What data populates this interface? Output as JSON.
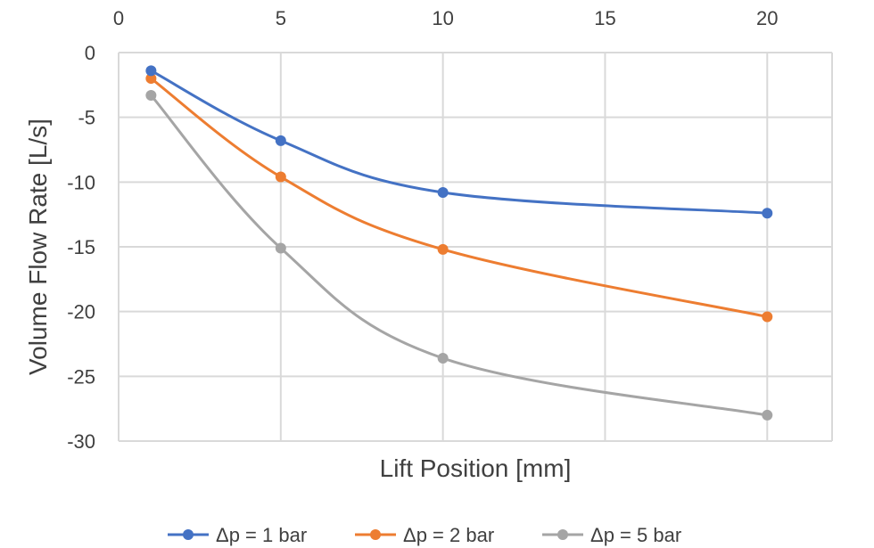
{
  "chart_data": {
    "type": "line",
    "title": "",
    "xlabel": "Lift Position [mm]",
    "ylabel": "Volume Flow Rate [L/s]",
    "xlim": [
      0,
      22
    ],
    "ylim": [
      -30,
      0
    ],
    "xticks": [
      0,
      5,
      10,
      15,
      20
    ],
    "yticks": [
      0,
      -5,
      -10,
      -15,
      -20,
      -25,
      -30
    ],
    "x_axis_position": "top",
    "grid": true,
    "smooth": true,
    "legend_position": "bottom",
    "x": [
      1,
      5,
      10,
      20
    ],
    "series": [
      {
        "name": "Δp = 1 bar",
        "color": "#4472c4",
        "values": [
          -1.4,
          -6.8,
          -10.8,
          -12.4
        ]
      },
      {
        "name": "Δp = 2 bar",
        "color": "#ed7d31",
        "values": [
          -2.0,
          -9.6,
          -15.2,
          -20.4
        ]
      },
      {
        "name": "Δp = 5 bar",
        "color": "#a5a5a5",
        "values": [
          -3.3,
          -15.1,
          -23.6,
          -28.0
        ]
      }
    ]
  }
}
